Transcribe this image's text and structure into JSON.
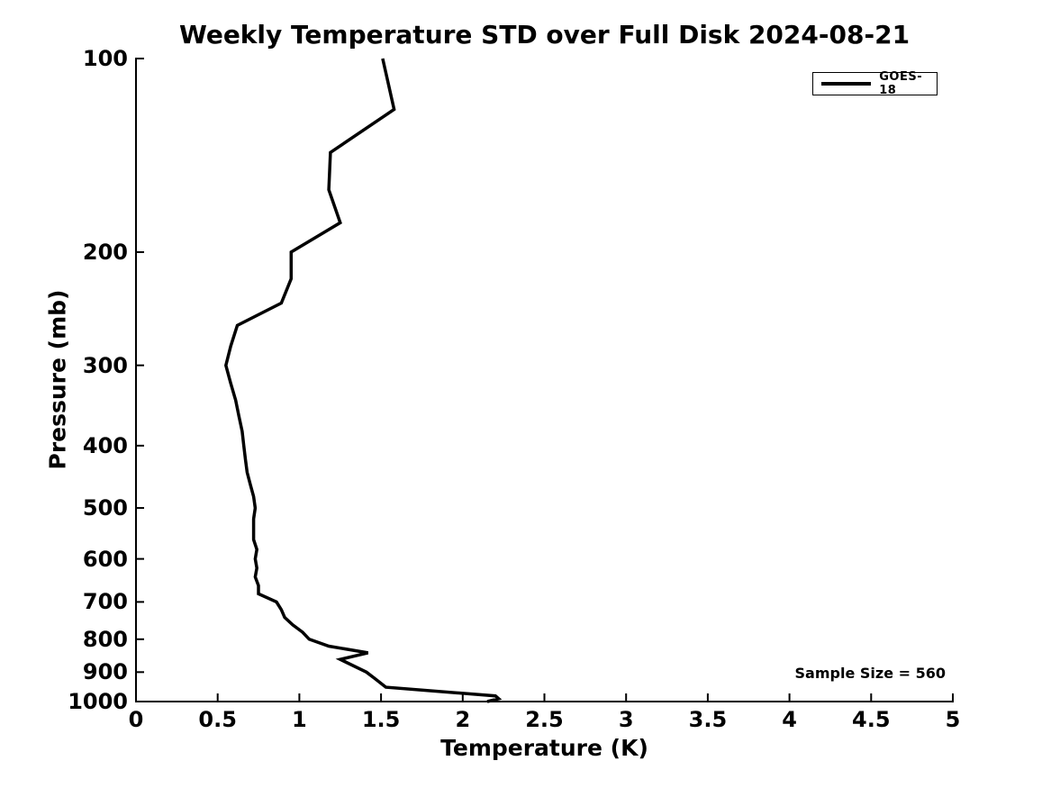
{
  "chart_data": {
    "type": "line",
    "title": "Weekly Temperature STD over Full Disk 2024-08-21",
    "xlabel": "Temperature (K)",
    "ylabel": "Pressure (mb)",
    "xlim": [
      0,
      5
    ],
    "ylim": [
      1000,
      100
    ],
    "yscale": "log",
    "grid": false,
    "x_ticks": [
      "0",
      "0.5",
      "1",
      "1.5",
      "2",
      "2.5",
      "3",
      "3.5",
      "4",
      "4.5",
      "5"
    ],
    "x_tick_values": [
      0,
      0.5,
      1,
      1.5,
      2,
      2.5,
      3,
      3.5,
      4,
      4.5,
      5
    ],
    "y_ticks": [
      "100",
      "200",
      "300",
      "400",
      "500",
      "600",
      "700",
      "800",
      "900",
      "1000"
    ],
    "y_tick_values": [
      100,
      200,
      300,
      400,
      500,
      600,
      700,
      800,
      900,
      1000
    ],
    "legend": {
      "position": "top-right",
      "entries": [
        {
          "label": "GOES-18",
          "color": "#000000"
        }
      ]
    },
    "annotation": "Sample Size = 560",
    "series": [
      {
        "name": "GOES-18",
        "color": "#000000",
        "pressure_mb": [
          100,
          120,
          140,
          160,
          180,
          200,
          220,
          240,
          260,
          280,
          300,
          320,
          340,
          360,
          380,
          400,
          420,
          440,
          460,
          480,
          500,
          520,
          540,
          560,
          580,
          600,
          620,
          640,
          660,
          680,
          700,
          720,
          740,
          760,
          780,
          800,
          820,
          840,
          860,
          900,
          920,
          950,
          980,
          990,
          1000
        ],
        "temp_std_k": [
          1.51,
          1.58,
          1.19,
          1.18,
          1.25,
          0.95,
          0.95,
          0.89,
          0.62,
          0.58,
          0.55,
          0.58,
          0.61,
          0.63,
          0.65,
          0.66,
          0.67,
          0.68,
          0.7,
          0.72,
          0.73,
          0.72,
          0.72,
          0.72,
          0.74,
          0.73,
          0.74,
          0.73,
          0.75,
          0.75,
          0.86,
          0.89,
          0.91,
          0.96,
          1.02,
          1.06,
          1.18,
          1.42,
          1.25,
          1.41,
          1.46,
          1.53,
          2.2,
          2.22,
          2.15
        ]
      }
    ]
  }
}
